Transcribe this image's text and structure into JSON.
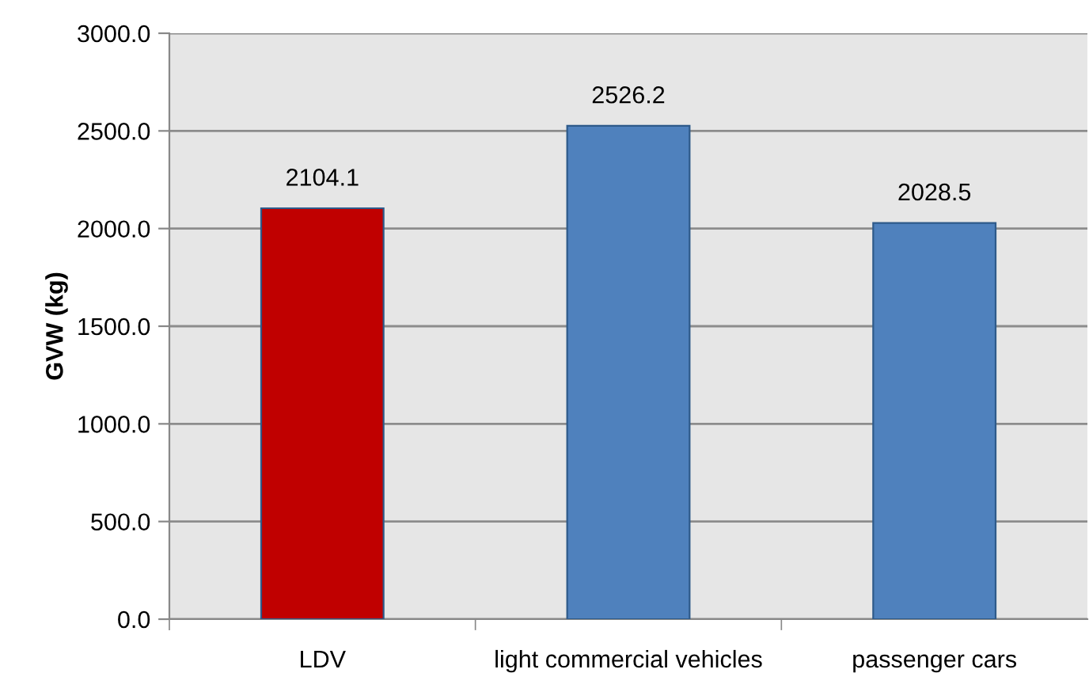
{
  "chart_data": {
    "type": "bar",
    "ylabel": "GVW (kg)",
    "categories": [
      "LDV",
      "light commercial vehicles",
      "passenger cars"
    ],
    "values": [
      2104.1,
      2526.2,
      2028.5
    ],
    "colors": [
      "#c00000",
      "#4f81bd",
      "#4f81bd"
    ],
    "ylim": [
      0,
      3000
    ],
    "yticks": [
      {
        "value": 0,
        "label": "0.0"
      },
      {
        "value": 500,
        "label": "500.0"
      },
      {
        "value": 1000,
        "label": "1000.0"
      },
      {
        "value": 1500,
        "label": "1500.0"
      },
      {
        "value": 2000,
        "label": "2000.0"
      },
      {
        "value": 2500,
        "label": "2500.0"
      },
      {
        "value": 3000,
        "label": "3000.0"
      }
    ],
    "grid": "y",
    "data_labels": true
  }
}
